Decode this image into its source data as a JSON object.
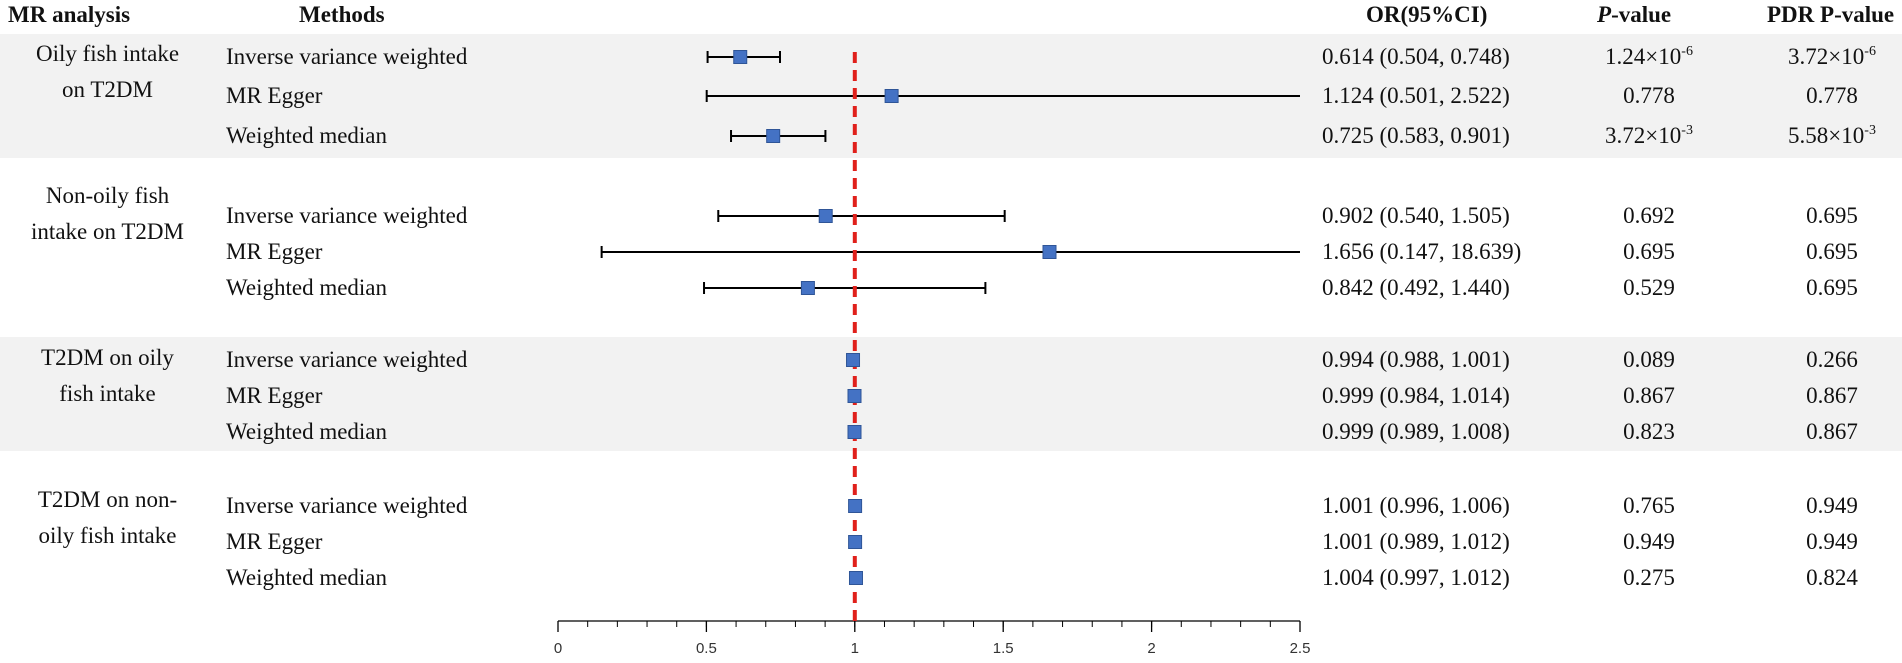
{
  "headers": {
    "analysis": "MR analysis",
    "methods": "Methods",
    "or": "OR(95%CI)",
    "p_italic": "P",
    "p_rest": "-value",
    "pdr": "PDR P-value"
  },
  "groups": [
    {
      "label_lines": [
        "Oily fish intake",
        "on T2DM"
      ],
      "shaded": true,
      "rows": [
        {
          "method": "Inverse variance weighted",
          "or_text": "0.614 (0.504, 0.748)",
          "p": {
            "mant": "1.24×10",
            "exp": "-6"
          },
          "pdr": {
            "mant": "3.72×10",
            "exp": "-6"
          }
        },
        {
          "method": "MR Egger",
          "or_text": "1.124 (0.501, 2.522)",
          "p": {
            "mant": "0.778",
            "exp": ""
          },
          "pdr": {
            "mant": "0.778",
            "exp": ""
          }
        },
        {
          "method": "Weighted median",
          "or_text": "0.725 (0.583, 0.901)",
          "p": {
            "mant": "3.72×10",
            "exp": "-3"
          },
          "pdr": {
            "mant": "5.58×10",
            "exp": "-3"
          }
        }
      ]
    },
    {
      "label_lines": [
        "Non-oily fish",
        "intake on T2DM"
      ],
      "shaded": false,
      "rows": [
        {
          "method": "Inverse variance weighted",
          "or_text": "0.902 (0.540, 1.505)",
          "p": {
            "mant": "0.692",
            "exp": ""
          },
          "pdr": {
            "mant": "0.695",
            "exp": ""
          }
        },
        {
          "method": "MR Egger",
          "or_text": "1.656 (0.147, 18.639)",
          "p": {
            "mant": "0.695",
            "exp": ""
          },
          "pdr": {
            "mant": "0.695",
            "exp": ""
          }
        },
        {
          "method": "Weighted median",
          "or_text": "0.842 (0.492, 1.440)",
          "p": {
            "mant": "0.529",
            "exp": ""
          },
          "pdr": {
            "mant": "0.695",
            "exp": ""
          }
        }
      ]
    },
    {
      "label_lines": [
        "T2DM on oily",
        "fish intake"
      ],
      "shaded": true,
      "rows": [
        {
          "method": "Inverse variance weighted",
          "or_text": "0.994 (0.988, 1.001)",
          "p": {
            "mant": "0.089",
            "exp": ""
          },
          "pdr": {
            "mant": "0.266",
            "exp": ""
          }
        },
        {
          "method": "MR Egger",
          "or_text": "0.999 (0.984, 1.014)",
          "p": {
            "mant": "0.867",
            "exp": ""
          },
          "pdr": {
            "mant": "0.867",
            "exp": ""
          }
        },
        {
          "method": "Weighted median",
          "or_text": "0.999 (0.989, 1.008)",
          "p": {
            "mant": "0.823",
            "exp": ""
          },
          "pdr": {
            "mant": "0.867",
            "exp": ""
          }
        }
      ]
    },
    {
      "label_lines": [
        "T2DM on non-",
        "oily fish intake"
      ],
      "shaded": false,
      "rows": [
        {
          "method": "Inverse variance weighted",
          "or_text": "1.001 (0.996, 1.006)",
          "p": {
            "mant": "0.765",
            "exp": ""
          },
          "pdr": {
            "mant": "0.949",
            "exp": ""
          }
        },
        {
          "method": "MR Egger",
          "or_text": "1.001 (0.989, 1.012)",
          "p": {
            "mant": "0.949",
            "exp": ""
          },
          "pdr": {
            "mant": "0.949",
            "exp": ""
          }
        },
        {
          "method": "Weighted median",
          "or_text": "1.004 (0.997, 1.012)",
          "p": {
            "mant": "0.275",
            "exp": ""
          },
          "pdr": {
            "mant": "0.824",
            "exp": ""
          }
        }
      ]
    }
  ],
  "chart_data": {
    "type": "forest",
    "xlim": [
      0,
      2.5
    ],
    "x_major_ticks": [
      0,
      0.5,
      1,
      1.5,
      2,
      2.5
    ],
    "x_tick_labels": [
      "0",
      "0.5",
      "1",
      "1.5",
      "2",
      "2.5"
    ],
    "x_minor_step": 0.1,
    "reference_line": 1,
    "series": [
      {
        "or": 0.614,
        "lo": 0.504,
        "hi": 0.748
      },
      {
        "or": 1.124,
        "lo": 0.501,
        "hi": 2.522
      },
      {
        "or": 0.725,
        "lo": 0.583,
        "hi": 0.901
      },
      {
        "or": 0.902,
        "lo": 0.54,
        "hi": 1.505
      },
      {
        "or": 1.656,
        "lo": 0.147,
        "hi": 18.639
      },
      {
        "or": 0.842,
        "lo": 0.492,
        "hi": 1.44
      },
      {
        "or": 0.994,
        "lo": 0.988,
        "hi": 1.001
      },
      {
        "or": 0.999,
        "lo": 0.984,
        "hi": 1.014
      },
      {
        "or": 0.999,
        "lo": 0.989,
        "hi": 1.008
      },
      {
        "or": 1.001,
        "lo": 0.996,
        "hi": 1.006
      },
      {
        "or": 1.001,
        "lo": 0.989,
        "hi": 1.012
      },
      {
        "or": 1.004,
        "lo": 0.997,
        "hi": 1.012
      }
    ],
    "colors": {
      "marker": "#4472c4",
      "marker_edge": "#2f5597",
      "reference": "#e0201b",
      "whisker": "#000000"
    }
  }
}
